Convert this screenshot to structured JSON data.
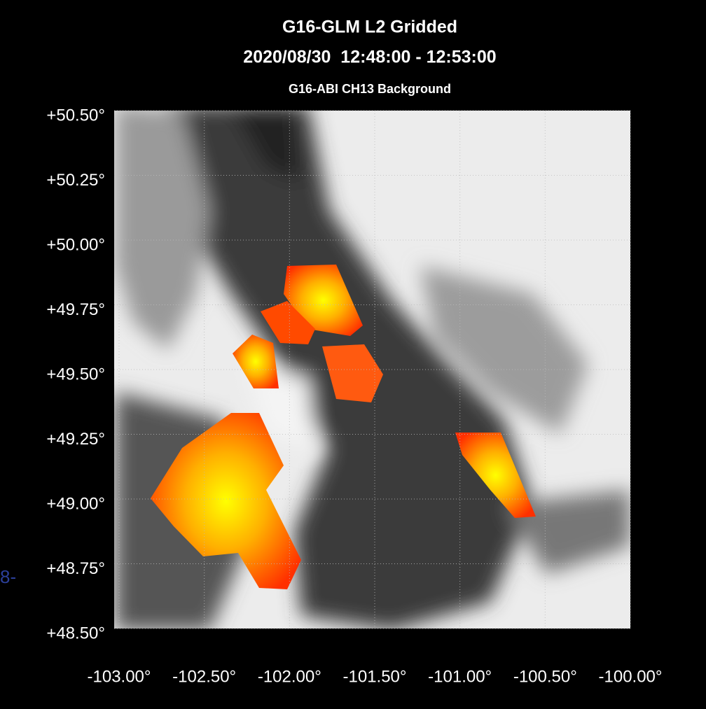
{
  "chart_data": {
    "type": "map",
    "title": "G16-GLM L2 Gridded",
    "subtitle": "2020/08/30  12:48:00 - 12:53:00",
    "background_label": "G16-ABI CH13 Background",
    "xlim": [
      -103,
      -100
    ],
    "ylim": [
      48.5,
      50.5
    ],
    "xticks": [
      {
        "value": -103,
        "label": "-103.00°"
      },
      {
        "value": -102.5,
        "label": "-102.50°"
      },
      {
        "value": -102,
        "label": "-102.00°"
      },
      {
        "value": -101.5,
        "label": "-101.50°"
      },
      {
        "value": -101,
        "label": "-101.00°"
      },
      {
        "value": -100.5,
        "label": "-100.50°"
      },
      {
        "value": -100,
        "label": "-100.00°"
      }
    ],
    "yticks": [
      {
        "value": 48.5,
        "label": "+48.50°"
      },
      {
        "value": 48.75,
        "label": "+48.75°"
      },
      {
        "value": 49,
        "label": "+49.00°"
      },
      {
        "value": 49.25,
        "label": "+49.25°"
      },
      {
        "value": 49.5,
        "label": "+49.50°"
      },
      {
        "value": 49.75,
        "label": "+49.75°"
      },
      {
        "value": 50,
        "label": "+50.00°"
      },
      {
        "value": 50.25,
        "label": "+50.25°"
      },
      {
        "value": 50.5,
        "label": "+50.50°"
      }
    ],
    "grid": true
  },
  "fragment": "8-"
}
